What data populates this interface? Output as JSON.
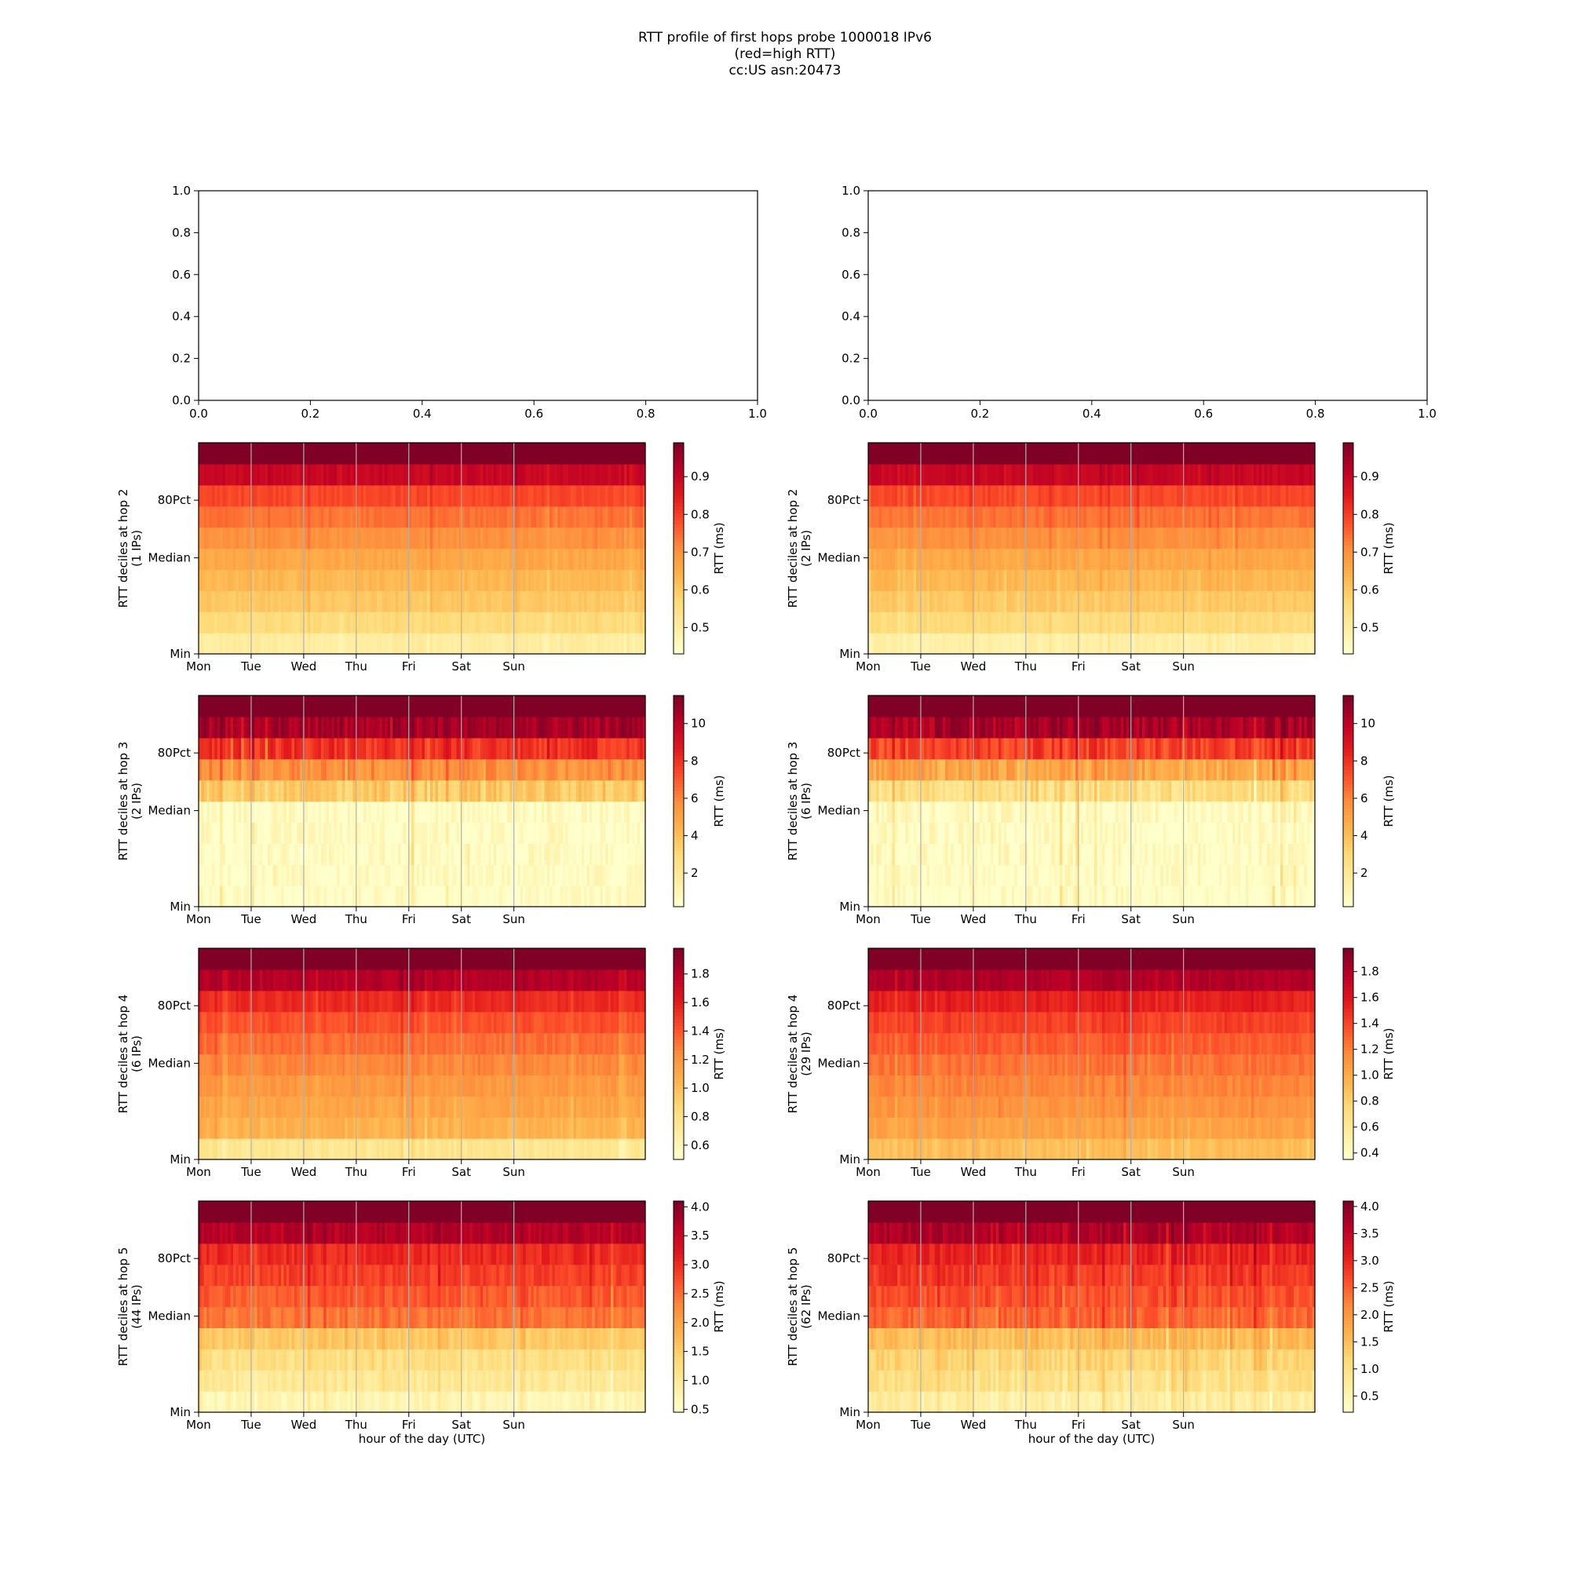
{
  "figure": {
    "title_lines": [
      "RTT profile of first hops probe 1000018 IPv6",
      "(red=high RTT)",
      "cc:US asn:20473"
    ]
  },
  "chart_data": [
    {
      "type": "line",
      "panel": "top-left",
      "title": "",
      "xlim": [
        0.0,
        1.0
      ],
      "ylim": [
        0.0,
        1.0
      ],
      "x_ticks": [
        "0.0",
        "0.2",
        "0.4",
        "0.6",
        "0.8",
        "1.0"
      ],
      "y_ticks": [
        "0.0",
        "0.2",
        "0.4",
        "0.6",
        "0.8",
        "1.0"
      ],
      "series": []
    },
    {
      "type": "line",
      "panel": "top-right",
      "title": "",
      "xlim": [
        0.0,
        1.0
      ],
      "ylim": [
        0.0,
        1.0
      ],
      "x_ticks": [
        "0.0",
        "0.2",
        "0.4",
        "0.6",
        "0.8",
        "1.0"
      ],
      "y_ticks": [
        "0.0",
        "0.2",
        "0.4",
        "0.6",
        "0.8",
        "1.0"
      ],
      "series": []
    },
    {
      "type": "heatmap",
      "panel": "left",
      "hop": 2,
      "ylabel_lines": [
        "RTT deciles at hop 2",
        "(1 IPs)"
      ],
      "x_categories": [
        "Mon",
        "Tue",
        "Wed",
        "Thu",
        "Fri",
        "Sat",
        "Sun"
      ],
      "y_ticks": [
        "Min",
        "Median",
        "80Pct"
      ],
      "colorbar": {
        "label": "RTT (ms)",
        "vmin": 0.43,
        "vmax": 0.99,
        "ticks": [
          "0.5",
          "0.6",
          "0.7",
          "0.8",
          "0.9"
        ],
        "tick_values": [
          0.5,
          0.6,
          0.7,
          0.8,
          0.9
        ]
      },
      "grid": true,
      "decile_levels": [
        0.5,
        0.56,
        0.6,
        0.63,
        0.66,
        0.7,
        0.74,
        0.79,
        0.9,
        0.99
      ],
      "noise": 0.06,
      "seed": 11
    },
    {
      "type": "heatmap",
      "panel": "right",
      "hop": 2,
      "ylabel_lines": [
        "RTT deciles at hop 2",
        "(2 IPs)"
      ],
      "x_categories": [
        "Mon",
        "Tue",
        "Wed",
        "Thu",
        "Fri",
        "Sat",
        "Sun"
      ],
      "y_ticks": [
        "Min",
        "Median",
        "80Pct"
      ],
      "colorbar": {
        "label": "RTT (ms)",
        "vmin": 0.43,
        "vmax": 0.99,
        "ticks": [
          "0.5",
          "0.6",
          "0.7",
          "0.8",
          "0.9"
        ],
        "tick_values": [
          0.5,
          0.6,
          0.7,
          0.8,
          0.9
        ]
      },
      "grid": true,
      "decile_levels": [
        0.49,
        0.56,
        0.6,
        0.63,
        0.66,
        0.7,
        0.74,
        0.79,
        0.9,
        0.99
      ],
      "noise": 0.06,
      "seed": 23
    },
    {
      "type": "heatmap",
      "panel": "left",
      "hop": 3,
      "ylabel_lines": [
        "RTT deciles at hop 3",
        "(2 IPs)"
      ],
      "x_categories": [
        "Mon",
        "Tue",
        "Wed",
        "Thu",
        "Fri",
        "Sat",
        "Sun"
      ],
      "y_ticks": [
        "Min",
        "Median",
        "80Pct"
      ],
      "colorbar": {
        "label": "RTT (ms)",
        "vmin": 0.2,
        "vmax": 11.5,
        "ticks": [
          "2",
          "4",
          "6",
          "8",
          "10"
        ],
        "tick_values": [
          2,
          4,
          6,
          8,
          10
        ]
      },
      "grid": true,
      "decile_levels": [
        0.3,
        0.35,
        0.4,
        0.42,
        0.45,
        3.6,
        5.7,
        8.0,
        10.6,
        11.5
      ],
      "noise": 0.16,
      "seed": 37
    },
    {
      "type": "heatmap",
      "panel": "right",
      "hop": 3,
      "ylabel_lines": [
        "RTT deciles at hop 3",
        "(6 IPs)"
      ],
      "x_categories": [
        "Mon",
        "Tue",
        "Wed",
        "Thu",
        "Fri",
        "Sat",
        "Sun"
      ],
      "y_ticks": [
        "Min",
        "Median",
        "80Pct"
      ],
      "colorbar": {
        "label": "RTT (ms)",
        "vmin": 0.2,
        "vmax": 11.5,
        "ticks": [
          "2",
          "4",
          "6",
          "8",
          "10"
        ],
        "tick_values": [
          2,
          4,
          6,
          8,
          10
        ]
      },
      "grid": true,
      "decile_levels": [
        0.3,
        0.35,
        0.4,
        0.42,
        0.45,
        2.6,
        4.9,
        7.6,
        10.5,
        11.5
      ],
      "noise": 0.18,
      "seed": 41
    },
    {
      "type": "heatmap",
      "panel": "left",
      "hop": 4,
      "ylabel_lines": [
        "RTT deciles at hop 4",
        "(6 IPs)"
      ],
      "x_categories": [
        "Mon",
        "Tue",
        "Wed",
        "Thu",
        "Fri",
        "Sat",
        "Sun"
      ],
      "y_ticks": [
        "Min",
        "Median",
        "80Pct"
      ],
      "colorbar": {
        "label": "RTT (ms)",
        "vmin": 0.5,
        "vmax": 1.98,
        "ticks": [
          "0.6",
          "0.8",
          "1.0",
          "1.2",
          "1.4",
          "1.6",
          "1.8"
        ],
        "tick_values": [
          0.6,
          0.8,
          1.0,
          1.2,
          1.4,
          1.6,
          1.8
        ]
      },
      "grid": true,
      "decile_levels": [
        0.75,
        1.05,
        1.12,
        1.18,
        1.25,
        1.33,
        1.42,
        1.55,
        1.82,
        1.98
      ],
      "noise": 0.07,
      "seed": 53
    },
    {
      "type": "heatmap",
      "panel": "right",
      "hop": 4,
      "ylabel_lines": [
        "RTT deciles at hop 4",
        "(29 IPs)"
      ],
      "x_categories": [
        "Mon",
        "Tue",
        "Wed",
        "Thu",
        "Fri",
        "Sat",
        "Sun"
      ],
      "y_ticks": [
        "Min",
        "Median",
        "80Pct"
      ],
      "colorbar": {
        "label": "RTT (ms)",
        "vmin": 0.35,
        "vmax": 1.98,
        "ticks": [
          "0.4",
          "0.6",
          "0.8",
          "1.0",
          "1.2",
          "1.4",
          "1.6",
          "1.8"
        ],
        "tick_values": [
          0.4,
          0.6,
          0.8,
          1.0,
          1.2,
          1.4,
          1.6,
          1.8
        ]
      },
      "grid": true,
      "decile_levels": [
        0.9,
        1.05,
        1.12,
        1.18,
        1.25,
        1.33,
        1.42,
        1.55,
        1.82,
        1.98
      ],
      "noise": 0.07,
      "seed": 67
    },
    {
      "type": "heatmap",
      "panel": "left",
      "hop": 5,
      "ylabel_lines": [
        "RTT deciles at hop 5",
        "(44 IPs)"
      ],
      "xlabel": "hour of the day (UTC)",
      "x_categories": [
        "Mon",
        "Tue",
        "Wed",
        "Thu",
        "Fri",
        "Sat",
        "Sun"
      ],
      "y_ticks": [
        "Min",
        "Median",
        "80Pct"
      ],
      "colorbar": {
        "label": "RTT (ms)",
        "vmin": 0.45,
        "vmax": 4.1,
        "ticks": [
          "0.5",
          "1.0",
          "1.5",
          "2.0",
          "2.5",
          "3.0",
          "3.5",
          "4.0"
        ],
        "tick_values": [
          0.5,
          1.0,
          1.5,
          2.0,
          2.5,
          3.0,
          3.5,
          4.0
        ]
      },
      "grid": true,
      "decile_levels": [
        0.7,
        1.0,
        1.2,
        1.55,
        2.45,
        2.65,
        2.85,
        3.05,
        3.7,
        4.1
      ],
      "noise": 0.1,
      "seed": 79
    },
    {
      "type": "heatmap",
      "panel": "right",
      "hop": 5,
      "ylabel_lines": [
        "RTT deciles at hop 5",
        "(62 IPs)"
      ],
      "xlabel": "hour of the day (UTC)",
      "x_categories": [
        "Mon",
        "Tue",
        "Wed",
        "Thu",
        "Fri",
        "Sat",
        "Sun"
      ],
      "y_ticks": [
        "Min",
        "Median",
        "80Pct"
      ],
      "colorbar": {
        "label": "RTT (ms)",
        "vmin": 0.2,
        "vmax": 4.1,
        "ticks": [
          "0.5",
          "1.0",
          "1.5",
          "2.0",
          "2.5",
          "3.0",
          "3.5",
          "4.0"
        ],
        "tick_values": [
          0.5,
          1.0,
          1.5,
          2.0,
          2.5,
          3.0,
          3.5,
          4.0
        ]
      },
      "grid": true,
      "decile_levels": [
        0.7,
        1.0,
        1.2,
        1.55,
        2.45,
        2.65,
        2.85,
        3.05,
        3.7,
        4.1
      ],
      "noise": 0.12,
      "seed": 97
    }
  ],
  "colormap": {
    "name": "YlOrRd",
    "stops": [
      "#ffffcc",
      "#ffeda0",
      "#fed976",
      "#feb24c",
      "#fd8d3c",
      "#fc4e2a",
      "#e31a1c",
      "#bd0026",
      "#800026"
    ]
  },
  "colors": {
    "grid": "#b0b0b0",
    "axes": "#000000",
    "background": "#ffffff"
  }
}
